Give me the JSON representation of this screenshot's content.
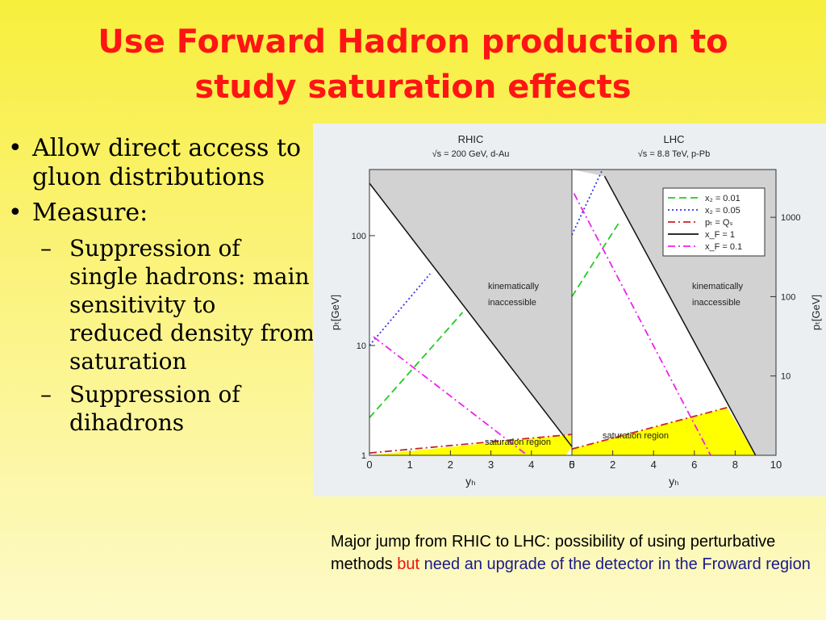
{
  "title": {
    "line1": "Use Forward Hadron production to",
    "line2": "study saturation effects"
  },
  "bullets": {
    "b1": "Allow direct access to gluon distributions",
    "b2": "Measure:",
    "s1": "Suppression of single hadrons: main sensitivity to reduced density from saturation",
    "s2": "Suppression of dihadrons"
  },
  "caption": {
    "part1": "Major jump from RHIC to LHC: possibility of using perturbative methods",
    "part2": "but",
    "part3": "need an upgrade of the detector in the Froward region"
  },
  "chart_data": {
    "type": "line",
    "y_scale": "log",
    "colors": {
      "x2_001": "#22cc22",
      "x2_005": "#3333ee",
      "pt_qs": "#cc2222",
      "xf_1": "#111111",
      "xf_01": "#ee22ee",
      "saturation": "#ffff00",
      "inaccessible": "#d2d2d2"
    },
    "panels": [
      {
        "title": "RHIC",
        "subtitle": "√s = 200 GeV, d-Au",
        "xlabel": "yₕ",
        "ylabel": "pₜ[GeV]",
        "xlim": [
          0,
          5
        ],
        "ylim": [
          1,
          400
        ],
        "x_ticks": [
          "0",
          "1",
          "2",
          "3",
          "4",
          "5"
        ],
        "y_ticks": [
          "1",
          "10",
          "100"
        ],
        "y_ticks_side": "left",
        "region_labels": [
          "kinematically",
          "inaccessible"
        ],
        "saturation_label": "saturation region",
        "series": [
          {
            "key": "xf_1",
            "points": [
              [
                0,
                300
              ],
              [
                5,
                1.2
              ]
            ]
          },
          {
            "key": "x2_005",
            "points": [
              [
                0,
                10
              ],
              [
                1.5,
                45
              ]
            ]
          },
          {
            "key": "x2_001",
            "points": [
              [
                0,
                2.2
              ],
              [
                2.3,
                20
              ]
            ]
          },
          {
            "key": "xf_01",
            "points": [
              [
                0.1,
                12
              ],
              [
                3.9,
                1
              ]
            ]
          },
          {
            "key": "pt_qs",
            "points": [
              [
                0,
                1.05
              ],
              [
                5,
                1.55
              ]
            ]
          }
        ],
        "saturation_region": [
          [
            0,
            1
          ],
          [
            5,
            1.55
          ],
          [
            5,
            1.2
          ],
          [
            4.85,
            1
          ]
        ]
      },
      {
        "title": "LHC",
        "subtitle": "√s = 8.8 TeV, p-Pb",
        "xlabel": "yₕ",
        "ylabel": "pₜ[GeV]",
        "xlim": [
          0,
          10
        ],
        "ylim": [
          1,
          4000
        ],
        "x_ticks": [
          "0",
          "2",
          "4",
          "6",
          "8",
          "10"
        ],
        "y_ticks": [
          "10",
          "100",
          "1000"
        ],
        "y_ticks_side": "right",
        "region_labels": [
          "kinematically",
          "inaccessible"
        ],
        "saturation_label": "saturation region",
        "series": [
          {
            "key": "xf_1",
            "points": [
              [
                1.6,
                3300
              ],
              [
                9,
                1
              ]
            ]
          },
          {
            "key": "x2_005",
            "points": [
              [
                0,
                600
              ],
              [
                1.5,
                4000
              ]
            ]
          },
          {
            "key": "x2_001",
            "points": [
              [
                0,
                100
              ],
              [
                2.3,
                850
              ]
            ]
          },
          {
            "key": "xf_01",
            "points": [
              [
                0.1,
                2000
              ],
              [
                6.8,
                1
              ]
            ]
          },
          {
            "key": "pt_qs",
            "points": [
              [
                0,
                1.2
              ],
              [
                7.6,
                4
              ]
            ]
          }
        ],
        "saturation_region": [
          [
            0,
            1.2
          ],
          [
            7.6,
            4
          ],
          [
            9,
            1
          ],
          [
            0,
            1
          ]
        ]
      }
    ],
    "legend": {
      "placement": "top-right",
      "entries": [
        {
          "key": "x2_001",
          "label": "x₂ = 0.01",
          "dash": "dashed"
        },
        {
          "key": "x2_005",
          "label": "x₂ = 0.05",
          "dash": "dotted"
        },
        {
          "key": "pt_qs",
          "label": "pₜ = Qₛ",
          "dash": "dashdot"
        },
        {
          "key": "xf_1",
          "label": "x_F = 1",
          "dash": "solid"
        },
        {
          "key": "xf_01",
          "label": "x_F = 0.1",
          "dash": "dashdot"
        }
      ]
    }
  }
}
